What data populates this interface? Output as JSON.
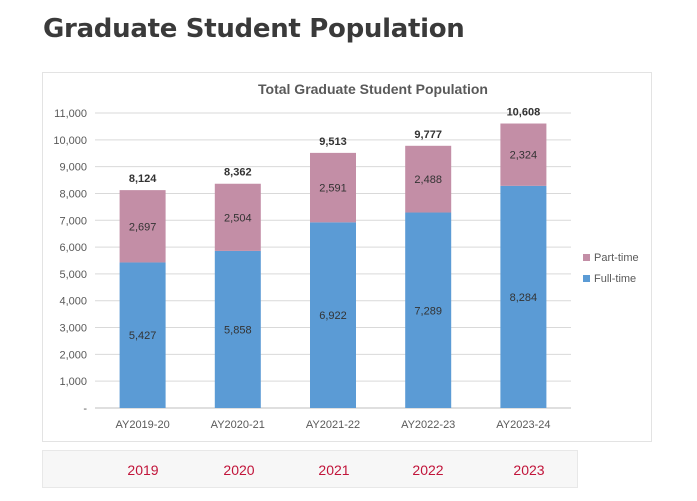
{
  "page": {
    "title": "Graduate Student Population"
  },
  "year_labels": [
    "2019",
    "2020",
    "2021",
    "2022",
    "2023"
  ],
  "chart_data": {
    "type": "bar",
    "stacked": true,
    "title": "Total Graduate Student Population",
    "categories": [
      "AY2019-20",
      "AY2020-21",
      "AY2021-22",
      "AY2022-23",
      "AY2023-24"
    ],
    "series": [
      {
        "name": "Full-time",
        "color": "#5b9bd5",
        "values": [
          5427,
          5858,
          6922,
          7289,
          8284
        ]
      },
      {
        "name": "Part-time",
        "color": "#c38ea6",
        "values": [
          2697,
          2504,
          2591,
          2488,
          2324
        ]
      }
    ],
    "totals": [
      8124,
      8362,
      9513,
      9777,
      10608
    ],
    "ylim": [
      0,
      11000
    ],
    "yticks": [
      0,
      1000,
      2000,
      3000,
      4000,
      5000,
      6000,
      7000,
      8000,
      9000,
      10000,
      11000
    ],
    "ytick_labels": [
      "-",
      "1,000",
      "2,000",
      "3,000",
      "4,000",
      "5,000",
      "6,000",
      "7,000",
      "8,000",
      "9,000",
      "10,000",
      "11,000"
    ],
    "grid": true,
    "legend": "right"
  }
}
